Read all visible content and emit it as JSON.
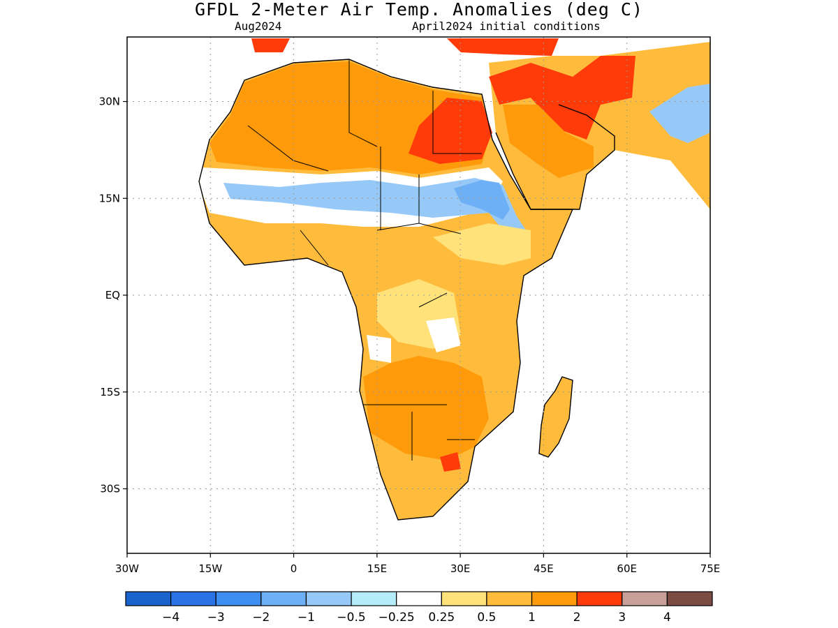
{
  "title": "GFDL 2-Meter Air Temp. Anomalies (deg C)",
  "subtitle_left": "Aug2024",
  "subtitle_right": "April2024 initial conditions",
  "map": {
    "lon_range": [
      -30,
      75
    ],
    "lat_range": [
      -40,
      40
    ],
    "x_ticks": [
      {
        "value": -30,
        "label": "30W"
      },
      {
        "value": -15,
        "label": "15W"
      },
      {
        "value": 0,
        "label": "0"
      },
      {
        "value": 15,
        "label": "15E"
      },
      {
        "value": 30,
        "label": "30E"
      },
      {
        "value": 45,
        "label": "45E"
      },
      {
        "value": 60,
        "label": "60E"
      },
      {
        "value": 75,
        "label": "75E"
      }
    ],
    "y_ticks": [
      {
        "value": 30,
        "label": "30N"
      },
      {
        "value": 15,
        "label": "15N"
      },
      {
        "value": 0,
        "label": "EQ"
      },
      {
        "value": -15,
        "label": "15S"
      },
      {
        "value": -30,
        "label": "30S"
      }
    ],
    "grid": "dotted"
  },
  "colorbar": {
    "colors": [
      "#1a63cc",
      "#2a73e6",
      "#3d8ef0",
      "#6eb0f5",
      "#96c8f8",
      "#b4ecf9",
      "#ffffff",
      "#ffe27a",
      "#ffbc3c",
      "#ff9a0a",
      "#ff3b0a",
      "#c9a099",
      "#7a4c42"
    ],
    "labels": [
      "-4",
      "-3",
      "-2",
      "-1",
      "-0.5",
      "-0.25",
      "0.25",
      "0.5",
      "1",
      "2",
      "3",
      "4"
    ]
  }
}
